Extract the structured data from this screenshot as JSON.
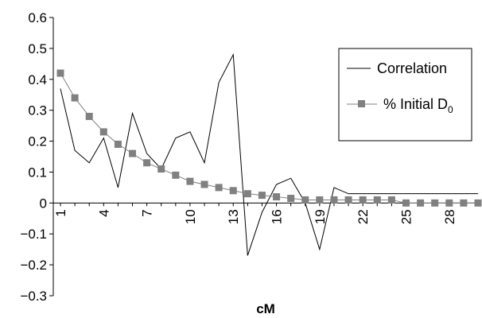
{
  "chart_data": {
    "type": "line",
    "title": "",
    "xlabel": "cM",
    "ylabel": "",
    "ylim": [
      -0.3,
      0.6
    ],
    "y_ticks": [
      "0.6",
      "0.5",
      "0.4",
      "0.3",
      "0.2",
      "0.1",
      "0",
      "−0.1",
      "−0.2",
      "−0.3"
    ],
    "y_tick_values": [
      0.6,
      0.5,
      0.4,
      0.3,
      0.2,
      0.1,
      0,
      -0.1,
      -0.2,
      -0.3
    ],
    "x_ticks": [
      "1",
      "4",
      "7",
      "10",
      "13",
      "16",
      "19",
      "22",
      "25",
      "28"
    ],
    "x_tick_values": [
      1,
      4,
      7,
      10,
      13,
      16,
      19,
      22,
      25,
      28
    ],
    "xlim": [
      1,
      30
    ],
    "x": [
      1,
      2,
      3,
      4,
      5,
      6,
      7,
      8,
      9,
      10,
      11,
      12,
      13,
      14,
      15,
      16,
      17,
      18,
      19,
      20,
      21,
      22,
      23,
      24,
      25,
      26,
      27,
      28,
      29,
      30
    ],
    "legend": "right",
    "series": [
      {
        "name": "Correlation",
        "color": "#000000",
        "marker": "none",
        "values": [
          0.37,
          0.17,
          0.13,
          0.21,
          0.05,
          0.29,
          0.16,
          0.11,
          0.21,
          0.23,
          0.13,
          0.39,
          0.48,
          -0.17,
          -0.03,
          0.06,
          0.08,
          0.0,
          -0.15,
          0.05,
          0.03,
          0.03,
          0.03,
          0.03,
          0.03,
          0.03,
          0.03,
          0.03,
          0.03,
          0.03
        ]
      },
      {
        "name": "% Initial D",
        "name_subscript": "0",
        "color": "#808080",
        "marker": "square",
        "values": [
          0.42,
          0.34,
          0.28,
          0.23,
          0.19,
          0.16,
          0.13,
          0.11,
          0.09,
          0.07,
          0.06,
          0.05,
          0.04,
          0.03,
          0.025,
          0.02,
          0.015,
          0.01,
          0.01,
          0.01,
          0.01,
          0.01,
          0.01,
          0.01,
          0.0,
          0.0,
          0.0,
          0.0,
          0.0,
          0.0
        ]
      }
    ]
  }
}
